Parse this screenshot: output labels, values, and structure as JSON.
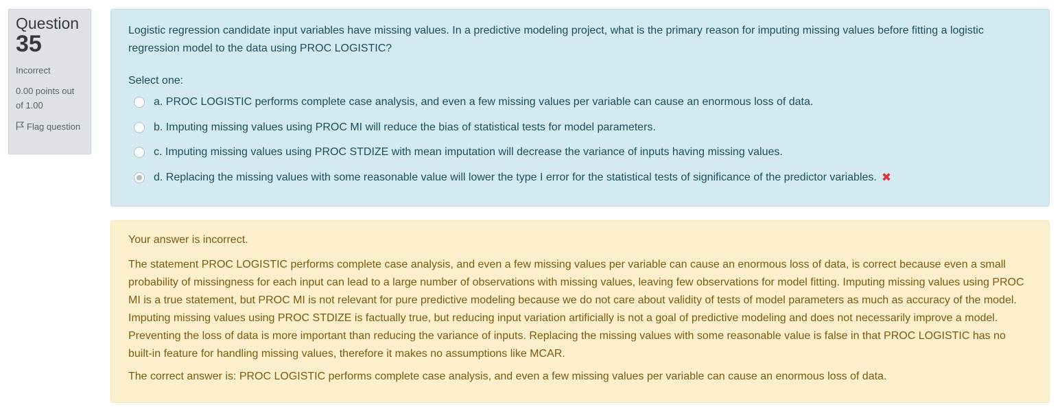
{
  "info": {
    "question_label": "Question",
    "question_number": "35",
    "state": "Incorrect",
    "grade": "0.00 points out of 1.00",
    "flag_label": "Flag question"
  },
  "question": {
    "text": "Logistic regression candidate input variables have missing values. In a predictive modeling project, what is the primary reason for imputing missing values before fitting a logistic regression model to the data using PROC LOGISTIC?",
    "prompt": "Select one:",
    "answers": [
      {
        "label": "a. PROC LOGISTIC performs complete case analysis, and even a few missing values per variable can cause an enormous loss of data.",
        "selected": false
      },
      {
        "label": "b. Imputing missing values using PROC MI will reduce the bias of statistical tests for model parameters.",
        "selected": false
      },
      {
        "label": "c. Imputing missing values using PROC STDIZE with mean imputation will decrease the variance of inputs having missing values.",
        "selected": false
      },
      {
        "label": "d. Replacing the missing values with some reasonable value will lower the type I error for the statistical tests of significance of the predictor variables.",
        "selected": true
      }
    ],
    "incorrect_mark": "✖"
  },
  "feedback": {
    "result": "Your answer is incorrect.",
    "general": "The statement PROC LOGISTIC performs complete case analysis, and even a few missing values per variable can cause an enormous loss of data, is correct because even a small probability of missingness for each input can lead to a large number of observations with missing values, leaving few observations for model fitting. Imputing missing values using PROC MI is a true statement, but PROC MI is not relevant for pure predictive modeling because we do not care about validity of tests of model parameters as much as accuracy of the model. Imputing missing values using PROC STDIZE is factually true, but reducing input variation artificially is not a goal of predictive modeling and does not necessarily improve a model. Preventing the loss of data is more important than reducing the variance of inputs. Replacing the missing values with some reasonable value is false in that PROC LOGISTIC has no built-in feature for handling missing values, therefore it makes no assumptions like MCAR.",
    "right_answer": "The correct answer is: PROC LOGISTIC performs complete case analysis, and even a few missing values per variable can cause an enormous loss of data."
  },
  "colors": {
    "info_bg": "#dee2e6",
    "question_bg": "#d2eaf0",
    "question_text": "#1c4f5a",
    "feedback_bg": "#fcefcc",
    "feedback_text": "#7d5a0f",
    "incorrect": "#d9383a"
  },
  "icons": {
    "flag": "flag-icon",
    "incorrect": "incorrect-icon"
  }
}
